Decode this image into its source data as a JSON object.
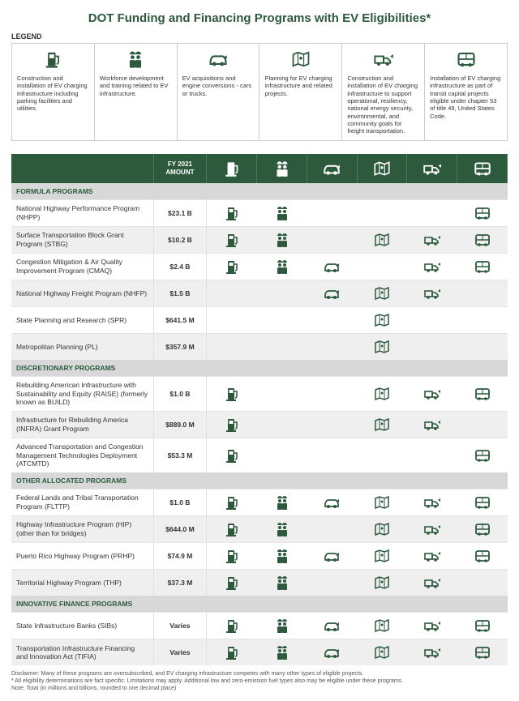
{
  "title": "DOT Funding and Financing Programs with EV Eligibilities*",
  "legend_label": "LEGEND",
  "amount_header": "FY 2021 AMOUNT",
  "colors": {
    "header_bg": "#2d5a3d",
    "icon": "#2d5a3d",
    "title": "#2d5a3d",
    "row_alt": "#efefef",
    "section_bg": "#d8d8d8"
  },
  "icons": [
    {
      "id": "charger",
      "desc": "Construction and installation of EV charging infrastructure including parking facilities and utilities."
    },
    {
      "id": "workers",
      "desc": "Workforce development and training related to EV infrastructure."
    },
    {
      "id": "car",
      "desc": "EV acquisitions and engine conversions - cars or trucks."
    },
    {
      "id": "map",
      "desc": "Planning for EV charging infrastructure and related projects."
    },
    {
      "id": "truck",
      "desc": "Construction and installation of EV charging infrastructure to support operational, resiliency, national energy security, environmental, and community goals for freight transportation."
    },
    {
      "id": "bus",
      "desc": "Installation of EV charging infrastructure as part of transit capital projects eligible under chapter 53 of title 49, United States Code."
    }
  ],
  "sections": [
    {
      "name": "FORMULA PROGRAMS",
      "rows": [
        {
          "name": "National Highway Performance Program (NHPP)",
          "amount": "$23.1 B",
          "eligible": [
            "charger",
            "workers",
            "",
            "",
            "",
            "bus"
          ]
        },
        {
          "name": "Surface Transportation Block Grant Program (STBG)",
          "amount": "$10.2 B",
          "eligible": [
            "charger",
            "workers",
            "",
            "map",
            "truck",
            "bus"
          ]
        },
        {
          "name": "Congestion Mitigation & Air Quality Improvement Program (CMAQ)",
          "amount": "$2.4 B",
          "eligible": [
            "charger",
            "workers",
            "car",
            "",
            "truck",
            "bus"
          ]
        },
        {
          "name": "National Highway Freight Program (NHFP)",
          "amount": "$1.5 B",
          "eligible": [
            "",
            "",
            "car",
            "map",
            "truck",
            ""
          ]
        },
        {
          "name": "State Planning and Research (SPR)",
          "amount": "$641.5 M",
          "eligible": [
            "",
            "",
            "",
            "map",
            "",
            ""
          ]
        },
        {
          "name": "Metropolitan Planning (PL)",
          "amount": "$357.9 M",
          "eligible": [
            "",
            "",
            "",
            "map",
            "",
            ""
          ]
        }
      ]
    },
    {
      "name": "DISCRETIONARY PROGRAMS",
      "rows": [
        {
          "name": "Rebuilding American Infrastructure with Sustainability and Equity (RAISE) (formerly known as BUILD)",
          "amount": "$1.0 B",
          "eligible": [
            "charger",
            "",
            "",
            "map",
            "truck",
            "bus"
          ]
        },
        {
          "name": "Infrastructure for Rebuilding America (INFRA) Grant Program",
          "amount": "$889.0 M",
          "eligible": [
            "charger",
            "",
            "",
            "map",
            "truck",
            ""
          ]
        },
        {
          "name": "Advanced Transportation and Congestion Management Technologies Deployment (ATCMTD)",
          "amount": "$53.3 M",
          "eligible": [
            "charger",
            "",
            "",
            "",
            "",
            "bus"
          ]
        }
      ]
    },
    {
      "name": "OTHER ALLOCATED PROGRAMS",
      "rows": [
        {
          "name": "Federal Lands and Tribal Transportation Program (FLTTP)",
          "amount": "$1.0 B",
          "eligible": [
            "charger",
            "workers",
            "car",
            "map",
            "truck",
            "bus"
          ]
        },
        {
          "name": "Highway Infrastructure Program (HIP) (other than for bridges)",
          "amount": "$644.0 M",
          "eligible": [
            "charger",
            "workers",
            "",
            "map",
            "truck",
            "bus"
          ]
        },
        {
          "name": "Puerto Rico Highway Program (PRHP)",
          "amount": "$74.9 M",
          "eligible": [
            "charger",
            "workers",
            "car",
            "map",
            "truck",
            "bus"
          ]
        },
        {
          "name": "Territorial Highway Program (THP)",
          "amount": "$37.3 M",
          "eligible": [
            "charger",
            "workers",
            "",
            "map",
            "truck",
            ""
          ]
        }
      ]
    },
    {
      "name": "INNOVATIVE FINANCE PROGRAMS",
      "rows": [
        {
          "name": "State Infrastructure Banks (SIBs)",
          "amount": "Varies",
          "eligible": [
            "charger",
            "workers",
            "car",
            "map",
            "truck",
            "bus"
          ]
        },
        {
          "name": "Transportation Infrastructure Financing and Innovation Act (TIFIA)",
          "amount": "Varies",
          "eligible": [
            "charger",
            "workers",
            "car",
            "map",
            "truck",
            "bus"
          ]
        }
      ]
    }
  ],
  "footnotes": [
    "Disclaimer: Many of these programs are oversubscribed, and EV charging infrastructure competes with many other types of eligible projects.",
    "* All eligibility determinations are fact specific.  Limitations may apply.  Additional low and zero-emission fuel types also may be eligible under these programs.",
    "Note: Total (in millions and billions, rounded to one decimal place)"
  ]
}
